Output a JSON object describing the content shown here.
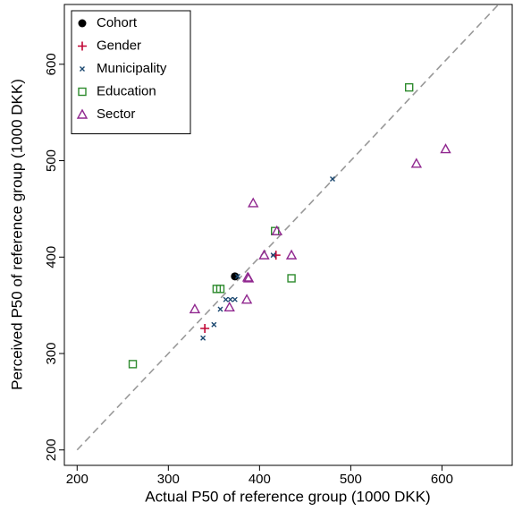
{
  "chart_data": {
    "type": "scatter",
    "x_label": "Actual P50 of reference group (1000 DKK)",
    "y_label": "Perceived P50 of reference group (1000 DKK)",
    "xlim": [
      186,
      677
    ],
    "ylim": [
      184,
      662
    ],
    "xticks": [
      200,
      300,
      400,
      500,
      600
    ],
    "yticks": [
      200,
      300,
      400,
      500,
      600
    ],
    "reference_line": [
      200,
      662
    ],
    "legend": "top-left",
    "series": [
      {
        "name": "Cohort",
        "color": "#000000",
        "marker": "circle",
        "x": [
          373
        ],
        "values": [
          380
        ]
      },
      {
        "name": "Gender",
        "color": "#c10534",
        "marker": "plus",
        "x": [
          340,
          418
        ],
        "values": [
          326,
          402
        ]
      },
      {
        "name": "Municipality",
        "color": "#1a476f",
        "marker": "x",
        "x": [
          338,
          350,
          357,
          363,
          368,
          373,
          376,
          480,
          415
        ],
        "values": [
          316,
          330,
          346,
          356,
          356,
          356,
          380,
          481,
          402
        ]
      },
      {
        "name": "Education",
        "color": "#2e8b2e",
        "marker": "square",
        "x": [
          261,
          353,
          357,
          417,
          435,
          564
        ],
        "values": [
          289,
          367,
          367,
          427,
          378,
          576
        ]
      },
      {
        "name": "Sector",
        "color": "#90278f",
        "marker": "triangle",
        "x": [
          329,
          367,
          386,
          387,
          388,
          393,
          405,
          419,
          435,
          572,
          604
        ],
        "values": [
          346,
          348,
          356,
          379,
          378,
          456,
          402,
          427,
          402,
          497,
          512
        ]
      }
    ]
  }
}
